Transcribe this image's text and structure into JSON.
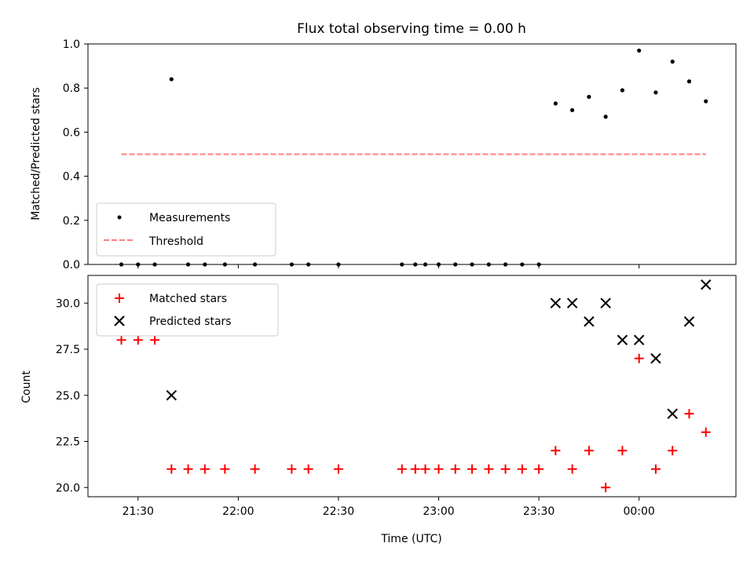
{
  "title": "Flux total observing time = 0.00 h",
  "colors": {
    "measurement": "#000000",
    "threshold": "#ff7f7f",
    "matched": "#ff0000",
    "predicted": "#000000",
    "axes": "#000000"
  },
  "chart_data": [
    {
      "type": "scatter",
      "ylabel": "Matched/Predicted stars",
      "xlim": [
        "21:15",
        "00:29"
      ],
      "ylim": [
        0,
        1.0
      ],
      "yticks": [
        "0.0",
        "0.2",
        "0.4",
        "0.6",
        "0.8",
        "1.0"
      ],
      "legend": {
        "placement": "lower-left",
        "entries": [
          "Measurements",
          "Threshold"
        ]
      },
      "series": [
        {
          "name": "Measurements",
          "marker": "dot",
          "points": [
            [
              "21:25",
              0
            ],
            [
              "21:30",
              0
            ],
            [
              "21:35",
              0
            ],
            [
              "21:40",
              0.84
            ],
            [
              "21:45",
              0
            ],
            [
              "21:50",
              0
            ],
            [
              "21:56",
              0
            ],
            [
              "22:05",
              0
            ],
            [
              "22:16",
              0
            ],
            [
              "22:21",
              0
            ],
            [
              "22:30",
              0
            ],
            [
              "22:49",
              0
            ],
            [
              "22:53",
              0
            ],
            [
              "22:56",
              0
            ],
            [
              "23:00",
              0
            ],
            [
              "23:05",
              0
            ],
            [
              "23:10",
              0
            ],
            [
              "23:15",
              0
            ],
            [
              "23:20",
              0
            ],
            [
              "23:25",
              0
            ],
            [
              "23:30",
              0
            ],
            [
              "23:35",
              0.73
            ],
            [
              "23:40",
              0.7
            ],
            [
              "23:45",
              0.76
            ],
            [
              "23:50",
              0.67
            ],
            [
              "23:55",
              0.79
            ],
            [
              "00:00",
              0.97
            ],
            [
              "00:05",
              0.78
            ],
            [
              "00:10",
              0.92
            ],
            [
              "00:15",
              0.83
            ],
            [
              "00:20",
              0.74
            ]
          ]
        },
        {
          "name": "Threshold",
          "style": "dashed",
          "x": [
            "21:25",
            "00:20"
          ],
          "y": [
            0.5,
            0.5
          ]
        }
      ]
    },
    {
      "type": "scatter",
      "xlabel": "Time (UTC)",
      "ylabel": "Count",
      "xlim": [
        "21:15",
        "00:29"
      ],
      "ylim": [
        19.5,
        31.5
      ],
      "yticks": [
        "20.0",
        "22.5",
        "25.0",
        "27.5",
        "30.0"
      ],
      "xticks": [
        "21:30",
        "22:00",
        "22:30",
        "23:00",
        "23:30",
        "00:00"
      ],
      "legend": {
        "placement": "upper-left",
        "entries": [
          "Matched stars",
          "Predicted stars"
        ]
      },
      "series": [
        {
          "name": "Matched stars",
          "marker": "plus",
          "points": [
            [
              "21:25",
              28
            ],
            [
              "21:30",
              28
            ],
            [
              "21:35",
              28
            ],
            [
              "21:40",
              21
            ],
            [
              "21:45",
              21
            ],
            [
              "21:50",
              21
            ],
            [
              "21:56",
              21
            ],
            [
              "22:05",
              21
            ],
            [
              "22:16",
              21
            ],
            [
              "22:21",
              21
            ],
            [
              "22:30",
              21
            ],
            [
              "22:49",
              21
            ],
            [
              "22:53",
              21
            ],
            [
              "22:56",
              21
            ],
            [
              "23:00",
              21
            ],
            [
              "23:05",
              21
            ],
            [
              "23:10",
              21
            ],
            [
              "23:15",
              21
            ],
            [
              "23:20",
              21
            ],
            [
              "23:25",
              21
            ],
            [
              "23:30",
              21
            ],
            [
              "23:35",
              22
            ],
            [
              "23:40",
              21
            ],
            [
              "23:45",
              22
            ],
            [
              "23:50",
              20
            ],
            [
              "23:55",
              22
            ],
            [
              "00:00",
              27
            ],
            [
              "00:05",
              21
            ],
            [
              "00:10",
              22
            ],
            [
              "00:15",
              24
            ],
            [
              "00:20",
              23
            ]
          ]
        },
        {
          "name": "Predicted stars",
          "marker": "x",
          "points": [
            [
              "21:40",
              25
            ],
            [
              "23:35",
              30
            ],
            [
              "23:40",
              30
            ],
            [
              "23:45",
              29
            ],
            [
              "23:50",
              30
            ],
            [
              "23:55",
              28
            ],
            [
              "00:00",
              28
            ],
            [
              "00:05",
              27
            ],
            [
              "00:10",
              24
            ],
            [
              "00:15",
              29
            ],
            [
              "00:20",
              31
            ]
          ]
        }
      ]
    }
  ]
}
